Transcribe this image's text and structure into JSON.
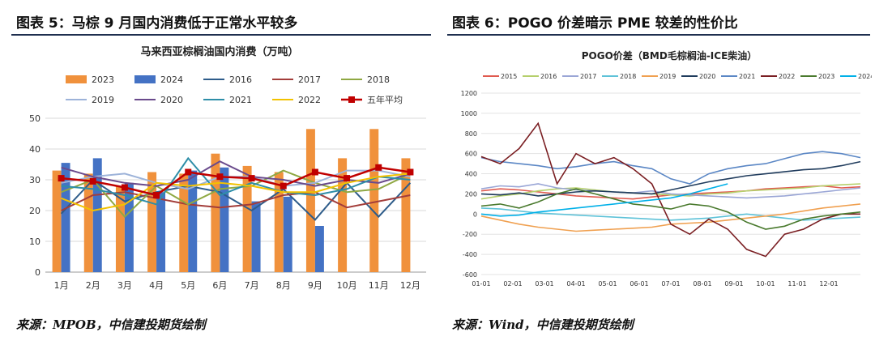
{
  "left": {
    "panel_title": "图表 5：马棕 9 月国内消费低于正常水平较多",
    "source": "来源：MPOB，中信建投期货绘制",
    "chart_data": {
      "type": "bar",
      "title": "马来西亚棕榈油国内消费（万吨）",
      "categories": [
        "1月",
        "2月",
        "3月",
        "4月",
        "5月",
        "6月",
        "7月",
        "8月",
        "9月",
        "10月",
        "11月",
        "12月"
      ],
      "ylim": [
        0,
        50
      ],
      "yticks": [
        0,
        10,
        20,
        30,
        40,
        50
      ],
      "bar_series": [
        {
          "name": "2023",
          "color": "#f0913c",
          "values": [
            33,
            32,
            28,
            32.5,
            32,
            38.5,
            34.5,
            32.5,
            46.5,
            37,
            46.5,
            37
          ]
        },
        {
          "name": "2024",
          "color": "#4472c4",
          "values": [
            35.5,
            37,
            29,
            26,
            33,
            34,
            23,
            24.5,
            15,
            null,
            null,
            null
          ]
        }
      ],
      "line_series": [
        {
          "name": "2016",
          "color": "#2e5c8a",
          "values": [
            19,
            30,
            23,
            26,
            28,
            26,
            20,
            27,
            17,
            29,
            18,
            29
          ]
        },
        {
          "name": "2017",
          "color": "#a33d3a",
          "values": [
            20,
            25,
            26,
            24,
            22,
            21,
            22,
            25,
            26,
            21,
            23,
            25
          ]
        },
        {
          "name": "2018",
          "color": "#8fa843",
          "values": [
            26,
            30,
            18,
            28,
            22,
            27,
            28,
            33,
            29,
            26,
            27,
            32
          ]
        },
        {
          "name": "2019",
          "color": "#9db3d9",
          "values": [
            29,
            31,
            32,
            29,
            27,
            31,
            31,
            28,
            29,
            33,
            33,
            31
          ]
        },
        {
          "name": "2020",
          "color": "#6a4a8c",
          "values": [
            34,
            31,
            29,
            28,
            30,
            36,
            31,
            30,
            28,
            30,
            29,
            32
          ]
        },
        {
          "name": "2021",
          "color": "#2e8ea8",
          "values": [
            28,
            27,
            25,
            22,
            37,
            25,
            29,
            26,
            25,
            27,
            31,
            30
          ]
        },
        {
          "name": "2022",
          "color": "#f2c200",
          "values": [
            24,
            20,
            22,
            29,
            28,
            29,
            28,
            26,
            26,
            29,
            31,
            32
          ]
        }
      ],
      "average_series": {
        "name": "五年平均",
        "color": "#c00000",
        "values": [
          30.5,
          29.5,
          27.5,
          25,
          32.5,
          31,
          30.5,
          28,
          32.5,
          30.5,
          34,
          32.5
        ]
      }
    }
  },
  "right": {
    "panel_title": "图表 6：POGO 价差暗示 PME 较差的性价比",
    "source": "来源：Wind，中信建投期货绘制",
    "chart_data": {
      "type": "line",
      "title": "POGO价差（BMD毛棕榈油-ICE柴油）",
      "x_labels": [
        "01-01",
        "02-01",
        "03-01",
        "04-01",
        "05-01",
        "06-01",
        "07-01",
        "08-01",
        "09-01",
        "10-01",
        "11-01",
        "12-01"
      ],
      "ylim": [
        -600,
        1200
      ],
      "yticks": [
        -600,
        -400,
        -200,
        0,
        200,
        400,
        600,
        800,
        1000,
        1200
      ],
      "series": [
        {
          "name": "2015",
          "color": "#e05a4f",
          "values": [
            230,
            250,
            240,
            220,
            200,
            180,
            170,
            160,
            150,
            170,
            190,
            200,
            210,
            220,
            230,
            250,
            260,
            270,
            280,
            260,
            270
          ]
        },
        {
          "name": "2016",
          "color": "#b5cf6b",
          "values": [
            150,
            180,
            200,
            230,
            250,
            260,
            240,
            220,
            210,
            200,
            190,
            180,
            200,
            210,
            230,
            240,
            250,
            260,
            280,
            290,
            300
          ]
        },
        {
          "name": "2017",
          "color": "#9aa6d6",
          "values": [
            250,
            280,
            270,
            300,
            260,
            240,
            230,
            220,
            210,
            230,
            200,
            190,
            180,
            170,
            160,
            170,
            180,
            200,
            220,
            240,
            260
          ]
        },
        {
          "name": "2018",
          "color": "#5ec2d8",
          "values": [
            60,
            50,
            30,
            10,
            0,
            -10,
            -20,
            -30,
            -40,
            -50,
            -60,
            -50,
            -40,
            -20,
            0,
            -20,
            -40,
            -60,
            -50,
            -40,
            -30
          ]
        },
        {
          "name": "2019",
          "color": "#f0a050",
          "values": [
            -20,
            -60,
            -100,
            -130,
            -150,
            -170,
            -160,
            -150,
            -140,
            -130,
            -100,
            -90,
            -80,
            -60,
            -40,
            -20,
            0,
            30,
            60,
            80,
            100
          ]
        },
        {
          "name": "2020",
          "color": "#1f3b5c",
          "values": [
            200,
            190,
            210,
            180,
            200,
            220,
            230,
            220,
            210,
            200,
            240,
            280,
            320,
            350,
            380,
            400,
            420,
            440,
            450,
            480,
            520
          ]
        },
        {
          "name": "2021",
          "color": "#5b87c5",
          "values": [
            560,
            520,
            500,
            480,
            450,
            470,
            500,
            520,
            480,
            450,
            350,
            300,
            400,
            450,
            480,
            500,
            550,
            600,
            620,
            600,
            560
          ]
        },
        {
          "name": "2022",
          "color": "#7a1e22",
          "values": [
            570,
            500,
            650,
            900,
            300,
            600,
            500,
            560,
            450,
            300,
            -100,
            -200,
            -50,
            -150,
            -350,
            -420,
            -200,
            -150,
            -50,
            0,
            0
          ]
        },
        {
          "name": "2023",
          "color": "#4a7a2e",
          "values": [
            80,
            100,
            60,
            120,
            200,
            250,
            200,
            150,
            100,
            80,
            50,
            100,
            80,
            20,
            -80,
            -150,
            -120,
            -50,
            -20,
            0,
            20
          ]
        },
        {
          "name": "2024",
          "color": "#00b0e8",
          "values": [
            0,
            -20,
            -10,
            20,
            40,
            60,
            80,
            100,
            120,
            140,
            160,
            200,
            250,
            300,
            null,
            null,
            null,
            null,
            null,
            null,
            null
          ]
        }
      ]
    }
  }
}
